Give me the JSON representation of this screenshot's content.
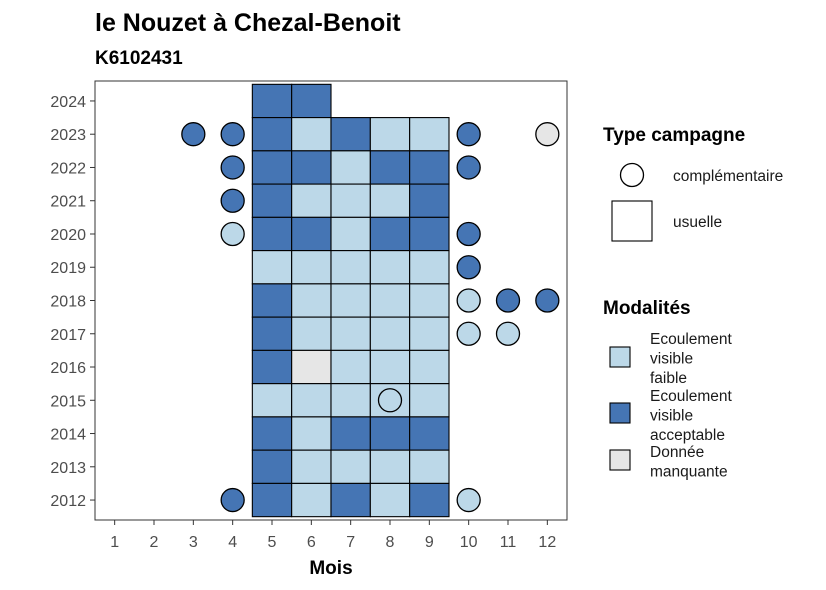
{
  "chart_data": {
    "type": "heatmap",
    "title": "le Nouzet à Chezal-Benoit",
    "subtitle": "K6102431",
    "xlabel": "Mois",
    "ylabel": "",
    "x_ticks": [
      "1",
      "2",
      "3",
      "4",
      "5",
      "6",
      "7",
      "8",
      "9",
      "10",
      "11",
      "12"
    ],
    "y_ticks": [
      "2012",
      "2013",
      "2014",
      "2015",
      "2016",
      "2017",
      "2018",
      "2019",
      "2020",
      "2021",
      "2022",
      "2023",
      "2024"
    ],
    "xlim": [
      0.5,
      12.5
    ],
    "ylim": [
      2011.4,
      2024.6
    ],
    "grid": false,
    "colors": {
      "faible": "#bcd8e8",
      "acceptable": "#4575b4",
      "manquante": "#e6e6e6"
    },
    "legend": {
      "type_title": "Type campagne",
      "type_items": [
        {
          "key": "complementaire",
          "shape": "circle",
          "label": "complémentaire"
        },
        {
          "key": "usuelle",
          "shape": "square",
          "label": "usuelle"
        }
      ],
      "mod_title": "Modalités",
      "mod_items": [
        {
          "key": "faible",
          "lines": [
            "Ecoulement",
            "visible",
            "faible"
          ]
        },
        {
          "key": "acceptable",
          "lines": [
            "Ecoulement",
            "visible",
            "acceptable"
          ]
        },
        {
          "key": "manquante",
          "lines": [
            "Donnée",
            "manquante"
          ]
        }
      ]
    },
    "usuelle": [
      {
        "year": 2024,
        "month": 5,
        "mod": "acceptable"
      },
      {
        "year": 2024,
        "month": 6,
        "mod": "acceptable"
      },
      {
        "year": 2023,
        "month": 5,
        "mod": "acceptable"
      },
      {
        "year": 2023,
        "month": 6,
        "mod": "faible"
      },
      {
        "year": 2023,
        "month": 7,
        "mod": "acceptable"
      },
      {
        "year": 2023,
        "month": 8,
        "mod": "faible"
      },
      {
        "year": 2023,
        "month": 9,
        "mod": "faible"
      },
      {
        "year": 2022,
        "month": 5,
        "mod": "acceptable"
      },
      {
        "year": 2022,
        "month": 6,
        "mod": "acceptable"
      },
      {
        "year": 2022,
        "month": 7,
        "mod": "faible"
      },
      {
        "year": 2022,
        "month": 8,
        "mod": "acceptable"
      },
      {
        "year": 2022,
        "month": 9,
        "mod": "acceptable"
      },
      {
        "year": 2021,
        "month": 5,
        "mod": "acceptable"
      },
      {
        "year": 2021,
        "month": 6,
        "mod": "faible"
      },
      {
        "year": 2021,
        "month": 7,
        "mod": "faible"
      },
      {
        "year": 2021,
        "month": 8,
        "mod": "faible"
      },
      {
        "year": 2021,
        "month": 9,
        "mod": "acceptable"
      },
      {
        "year": 2020,
        "month": 5,
        "mod": "acceptable"
      },
      {
        "year": 2020,
        "month": 6,
        "mod": "acceptable"
      },
      {
        "year": 2020,
        "month": 7,
        "mod": "faible"
      },
      {
        "year": 2020,
        "month": 8,
        "mod": "acceptable"
      },
      {
        "year": 2020,
        "month": 9,
        "mod": "acceptable"
      },
      {
        "year": 2019,
        "month": 5,
        "mod": "faible"
      },
      {
        "year": 2019,
        "month": 6,
        "mod": "faible"
      },
      {
        "year": 2019,
        "month": 7,
        "mod": "faible"
      },
      {
        "year": 2019,
        "month": 8,
        "mod": "faible"
      },
      {
        "year": 2019,
        "month": 9,
        "mod": "faible"
      },
      {
        "year": 2018,
        "month": 5,
        "mod": "acceptable"
      },
      {
        "year": 2018,
        "month": 6,
        "mod": "faible"
      },
      {
        "year": 2018,
        "month": 7,
        "mod": "faible"
      },
      {
        "year": 2018,
        "month": 8,
        "mod": "faible"
      },
      {
        "year": 2018,
        "month": 9,
        "mod": "faible"
      },
      {
        "year": 2017,
        "month": 5,
        "mod": "acceptable"
      },
      {
        "year": 2017,
        "month": 6,
        "mod": "faible"
      },
      {
        "year": 2017,
        "month": 7,
        "mod": "faible"
      },
      {
        "year": 2017,
        "month": 8,
        "mod": "faible"
      },
      {
        "year": 2017,
        "month": 9,
        "mod": "faible"
      },
      {
        "year": 2016,
        "month": 5,
        "mod": "acceptable"
      },
      {
        "year": 2016,
        "month": 6,
        "mod": "manquante"
      },
      {
        "year": 2016,
        "month": 7,
        "mod": "faible"
      },
      {
        "year": 2016,
        "month": 8,
        "mod": "faible"
      },
      {
        "year": 2016,
        "month": 9,
        "mod": "faible"
      },
      {
        "year": 2015,
        "month": 5,
        "mod": "faible"
      },
      {
        "year": 2015,
        "month": 6,
        "mod": "faible"
      },
      {
        "year": 2015,
        "month": 7,
        "mod": "faible"
      },
      {
        "year": 2015,
        "month": 8,
        "mod": "faible"
      },
      {
        "year": 2015,
        "month": 9,
        "mod": "faible"
      },
      {
        "year": 2014,
        "month": 5,
        "mod": "acceptable"
      },
      {
        "year": 2014,
        "month": 6,
        "mod": "faible"
      },
      {
        "year": 2014,
        "month": 7,
        "mod": "acceptable"
      },
      {
        "year": 2014,
        "month": 8,
        "mod": "acceptable"
      },
      {
        "year": 2014,
        "month": 9,
        "mod": "acceptable"
      },
      {
        "year": 2013,
        "month": 5,
        "mod": "acceptable"
      },
      {
        "year": 2013,
        "month": 6,
        "mod": "faible"
      },
      {
        "year": 2013,
        "month": 7,
        "mod": "faible"
      },
      {
        "year": 2013,
        "month": 8,
        "mod": "faible"
      },
      {
        "year": 2013,
        "month": 9,
        "mod": "faible"
      },
      {
        "year": 2012,
        "month": 5,
        "mod": "acceptable"
      },
      {
        "year": 2012,
        "month": 6,
        "mod": "faible"
      },
      {
        "year": 2012,
        "month": 7,
        "mod": "acceptable"
      },
      {
        "year": 2012,
        "month": 8,
        "mod": "faible"
      },
      {
        "year": 2012,
        "month": 9,
        "mod": "acceptable"
      }
    ],
    "complementaire": [
      {
        "year": 2023,
        "month": 3,
        "mod": "acceptable"
      },
      {
        "year": 2023,
        "month": 4,
        "mod": "acceptable"
      },
      {
        "year": 2023,
        "month": 10,
        "mod": "acceptable"
      },
      {
        "year": 2023,
        "month": 12,
        "mod": "manquante"
      },
      {
        "year": 2022,
        "month": 4,
        "mod": "acceptable"
      },
      {
        "year": 2022,
        "month": 10,
        "mod": "acceptable"
      },
      {
        "year": 2021,
        "month": 4,
        "mod": "acceptable"
      },
      {
        "year": 2020,
        "month": 4,
        "mod": "faible"
      },
      {
        "year": 2020,
        "month": 10,
        "mod": "acceptable"
      },
      {
        "year": 2019,
        "month": 10,
        "mod": "acceptable"
      },
      {
        "year": 2018,
        "month": 10,
        "mod": "faible"
      },
      {
        "year": 2018,
        "month": 11,
        "mod": "acceptable"
      },
      {
        "year": 2018,
        "month": 12,
        "mod": "acceptable"
      },
      {
        "year": 2017,
        "month": 10,
        "mod": "faible"
      },
      {
        "year": 2017,
        "month": 11,
        "mod": "faible"
      },
      {
        "year": 2015,
        "month": 8,
        "mod": "faible"
      },
      {
        "year": 2012,
        "month": 4,
        "mod": "acceptable"
      },
      {
        "year": 2012,
        "month": 10,
        "mod": "faible"
      }
    ]
  }
}
